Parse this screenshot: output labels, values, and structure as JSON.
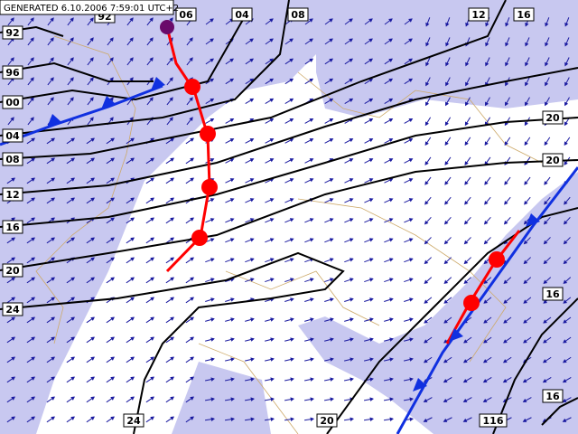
{
  "header": {
    "title": "GENERATED 6.10.2006 7:59:01 UTC+2"
  },
  "isobar_labels": {
    "left": [
      "92",
      "96",
      "00",
      "04",
      "08",
      "12",
      "16",
      "20",
      "24"
    ],
    "top": [
      "92",
      "06",
      "04",
      "08",
      "12",
      "16"
    ],
    "right": [
      "20",
      "20",
      "16",
      "16"
    ],
    "bottom": [
      "24",
      "20",
      "116"
    ]
  }
}
